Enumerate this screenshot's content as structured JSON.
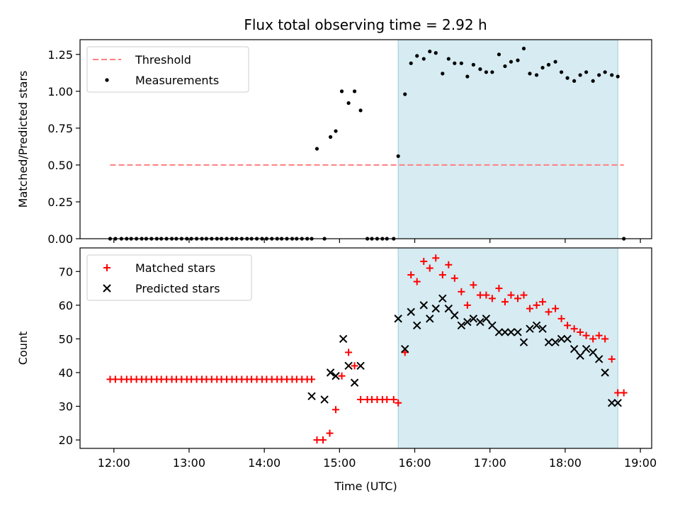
{
  "chart_data": [
    {
      "type": "scatter",
      "title": "Flux total observing time = 2.92 h",
      "xlabel": "",
      "ylabel": "Matched/Predicted stars",
      "ylim": [
        0,
        1.35
      ],
      "yticks": [
        "0.00",
        "0.25",
        "0.50",
        "0.75",
        "1.00",
        "1.25"
      ],
      "ytick_values": [
        0,
        0.25,
        0.5,
        0.75,
        1.0,
        1.25
      ],
      "xlim": [
        11.55,
        19.15
      ],
      "shaded_span": [
        15.78,
        18.7
      ],
      "legend": {
        "placement": "upper-left",
        "entries": [
          "Threshold",
          "Measurements"
        ]
      },
      "threshold": {
        "name": "Threshold",
        "x": [
          11.95,
          18.78
        ],
        "y": 0.5,
        "color": "#ff7f7f"
      },
      "series": [
        {
          "name": "Measurements",
          "color": "#000000",
          "x": [
            11.95,
            12.02,
            12.1,
            12.17,
            12.23,
            12.3,
            12.37,
            12.43,
            12.5,
            12.57,
            12.63,
            12.7,
            12.77,
            12.83,
            12.9,
            12.97,
            13.03,
            13.1,
            13.17,
            13.23,
            13.3,
            13.37,
            13.43,
            13.5,
            13.57,
            13.63,
            13.7,
            13.77,
            13.83,
            13.9,
            13.97,
            14.03,
            14.1,
            14.17,
            14.23,
            14.3,
            14.37,
            14.43,
            14.5,
            14.57,
            14.63,
            14.7,
            14.8,
            14.88,
            14.95,
            15.03,
            15.12,
            15.2,
            15.28,
            15.37,
            15.43,
            15.5,
            15.57,
            15.63,
            15.72,
            15.78,
            15.87,
            15.95,
            16.03,
            16.12,
            16.2,
            16.28,
            16.37,
            16.45,
            16.53,
            16.62,
            16.7,
            16.78,
            16.87,
            16.95,
            17.03,
            17.12,
            17.2,
            17.28,
            17.37,
            17.45,
            17.53,
            17.62,
            17.7,
            17.78,
            17.87,
            17.95,
            18.03,
            18.12,
            18.2,
            18.28,
            18.37,
            18.45,
            18.53,
            18.62,
            18.7,
            18.78
          ],
          "y": [
            0,
            0,
            0,
            0,
            0,
            0,
            0,
            0,
            0,
            0,
            0,
            0,
            0,
            0,
            0,
            0,
            0,
            0,
            0,
            0,
            0,
            0,
            0,
            0,
            0,
            0,
            0,
            0,
            0,
            0,
            0,
            0,
            0,
            0,
            0,
            0,
            0,
            0,
            0,
            0,
            0,
            0.61,
            0,
            0.69,
            0.73,
            1.0,
            0.92,
            1.0,
            0.87,
            0,
            0,
            0,
            0,
            0,
            0,
            0.56,
            0.98,
            1.19,
            1.24,
            1.22,
            1.27,
            1.26,
            1.12,
            1.22,
            1.19,
            1.19,
            1.1,
            1.18,
            1.15,
            1.13,
            1.13,
            1.25,
            1.17,
            1.2,
            1.21,
            1.29,
            1.12,
            1.11,
            1.16,
            1.18,
            1.2,
            1.13,
            1.09,
            1.07,
            1.11,
            1.13,
            1.07,
            1.11,
            1.13,
            1.11,
            1.1,
            0
          ]
        }
      ]
    },
    {
      "type": "scatter",
      "title": "",
      "xlabel": "Time (UTC)",
      "ylabel": "Count",
      "ylim": [
        17.5,
        77
      ],
      "yticks": [
        "20",
        "30",
        "40",
        "50",
        "60",
        "70"
      ],
      "ytick_values": [
        20,
        30,
        40,
        50,
        60,
        70
      ],
      "xlim": [
        11.55,
        19.15
      ],
      "xticks": [
        "12:00",
        "13:00",
        "14:00",
        "15:00",
        "16:00",
        "17:00",
        "18:00",
        "19:00"
      ],
      "xtick_values": [
        12,
        13,
        14,
        15,
        16,
        17,
        18,
        19
      ],
      "shaded_span": [
        15.78,
        18.7
      ],
      "legend": {
        "placement": "upper-left",
        "entries": [
          "Matched stars",
          "Predicted stars"
        ]
      },
      "series": [
        {
          "name": "Matched stars",
          "color": "#ff0000",
          "marker": "plus",
          "x": [
            11.95,
            12.02,
            12.1,
            12.17,
            12.23,
            12.3,
            12.37,
            12.43,
            12.5,
            12.57,
            12.63,
            12.7,
            12.77,
            12.83,
            12.9,
            12.97,
            13.03,
            13.1,
            13.17,
            13.23,
            13.3,
            13.37,
            13.43,
            13.5,
            13.57,
            13.63,
            13.7,
            13.77,
            13.83,
            13.9,
            13.97,
            14.03,
            14.1,
            14.17,
            14.23,
            14.3,
            14.37,
            14.43,
            14.5,
            14.57,
            14.63,
            14.7,
            14.78,
            14.87,
            14.95,
            15.03,
            15.12,
            15.2,
            15.28,
            15.37,
            15.43,
            15.5,
            15.57,
            15.63,
            15.72,
            15.78,
            15.87,
            15.95,
            16.03,
            16.12,
            16.2,
            16.28,
            16.37,
            16.45,
            16.53,
            16.62,
            16.7,
            16.78,
            16.87,
            16.95,
            17.03,
            17.12,
            17.2,
            17.28,
            17.37,
            17.45,
            17.53,
            17.62,
            17.7,
            17.78,
            17.87,
            17.95,
            18.03,
            18.12,
            18.2,
            18.28,
            18.37,
            18.45,
            18.53,
            18.62,
            18.7,
            18.78
          ],
          "y": [
            38,
            38,
            38,
            38,
            38,
            38,
            38,
            38,
            38,
            38,
            38,
            38,
            38,
            38,
            38,
            38,
            38,
            38,
            38,
            38,
            38,
            38,
            38,
            38,
            38,
            38,
            38,
            38,
            38,
            38,
            38,
            38,
            38,
            38,
            38,
            38,
            38,
            38,
            38,
            38,
            38,
            20,
            20,
            22,
            29,
            39,
            46,
            42,
            32,
            32,
            32,
            32,
            32,
            32,
            32,
            31,
            46,
            69,
            67,
            73,
            71,
            74,
            69,
            72,
            68,
            64,
            60,
            66,
            63,
            63,
            62,
            65,
            61,
            63,
            62,
            63,
            59,
            60,
            61,
            58,
            59,
            56,
            54,
            53,
            52,
            51,
            50,
            51,
            50,
            44,
            34,
            34
          ]
        },
        {
          "name": "Predicted stars",
          "color": "#000000",
          "marker": "x",
          "x": [
            14.63,
            14.8,
            14.88,
            14.95,
            15.05,
            15.12,
            15.2,
            15.28,
            15.78,
            15.87,
            15.95,
            16.03,
            16.12,
            16.2,
            16.28,
            16.37,
            16.45,
            16.53,
            16.62,
            16.7,
            16.78,
            16.87,
            16.95,
            17.03,
            17.12,
            17.2,
            17.28,
            17.37,
            17.45,
            17.53,
            17.62,
            17.7,
            17.78,
            17.87,
            17.95,
            18.03,
            18.12,
            18.2,
            18.28,
            18.37,
            18.45,
            18.53,
            18.62,
            18.7
          ],
          "y": [
            33,
            32,
            40,
            39,
            50,
            42,
            37,
            42,
            56,
            47,
            58,
            54,
            60,
            56,
            59,
            62,
            59,
            57,
            54,
            55,
            56,
            55,
            56,
            54,
            52,
            52,
            52,
            52,
            49,
            53,
            54,
            53,
            49,
            49,
            50,
            50,
            47,
            45,
            47,
            46,
            44,
            40,
            31,
            31
          ]
        }
      ]
    }
  ]
}
